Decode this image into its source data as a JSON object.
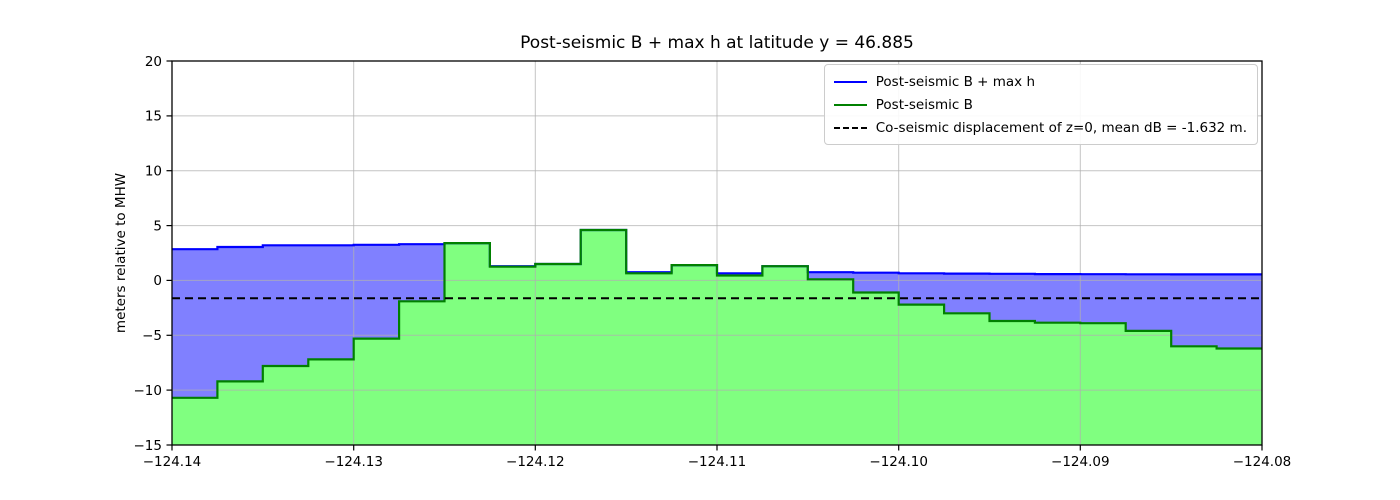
{
  "chart_data": {
    "type": "area",
    "title": "Post-seismic B + max h at latitude y = 46.885",
    "ylabel": "meters relative to MHW",
    "xlim": [
      -124.14,
      -124.08
    ],
    "ylim": [
      -15,
      20
    ],
    "grid": true,
    "legend_position": "upper right",
    "x_ticks": [
      {
        "v": -124.14,
        "label": "−124.14"
      },
      {
        "v": -124.13,
        "label": "−124.13"
      },
      {
        "v": -124.12,
        "label": "−124.12"
      },
      {
        "v": -124.11,
        "label": "−124.11"
      },
      {
        "v": -124.1,
        "label": "−124.10"
      },
      {
        "v": -124.09,
        "label": "−124.09"
      },
      {
        "v": -124.08,
        "label": "−124.08"
      }
    ],
    "y_ticks": [
      {
        "v": 20,
        "label": "20"
      },
      {
        "v": 15,
        "label": "15"
      },
      {
        "v": 10,
        "label": "10"
      },
      {
        "v": 5,
        "label": "5"
      },
      {
        "v": 0,
        "label": "0"
      },
      {
        "v": -5,
        "label": "−5"
      },
      {
        "v": -10,
        "label": "−10"
      },
      {
        "v": -15,
        "label": "−15"
      }
    ],
    "step_edges": [
      -124.14,
      -124.1375,
      -124.135,
      -124.1325,
      -124.13,
      -124.1275,
      -124.125,
      -124.1225,
      -124.12,
      -124.1175,
      -124.115,
      -124.1125,
      -124.11,
      -124.1075,
      -124.105,
      -124.1025,
      -124.1,
      -124.0975,
      -124.095,
      -124.0925,
      -124.09,
      -124.0875,
      -124.085,
      -124.0825,
      -124.08
    ],
    "series": [
      {
        "name": "Post-seismic B + max h",
        "line_color": "#0000ff",
        "fill_color": "#8080ff",
        "style": "solid",
        "values": [
          2.85,
          3.05,
          3.2,
          3.2,
          3.25,
          3.3,
          3.4,
          1.3,
          1.5,
          4.6,
          0.75,
          1.4,
          0.65,
          1.3,
          0.75,
          0.7,
          0.65,
          0.62,
          0.6,
          0.58,
          0.57,
          0.56,
          0.55,
          0.55
        ]
      },
      {
        "name": "Post-seismic B",
        "line_color": "#008000",
        "fill_color": "#80ff80",
        "style": "solid",
        "values": [
          -10.7,
          -9.2,
          -7.8,
          -7.2,
          -5.3,
          -1.9,
          3.4,
          1.25,
          1.5,
          4.6,
          0.65,
          1.4,
          0.45,
          1.3,
          0.1,
          -1.1,
          -2.2,
          -3.0,
          -3.7,
          -3.85,
          -3.9,
          -4.6,
          -6.0,
          -6.2
        ]
      }
    ],
    "coseismic_line": {
      "name": "Co-seismic displacement of z=0, mean dB = -1.632 m.",
      "color": "#000000",
      "style": "dashed",
      "value": -1.632
    },
    "grid_color": "#b0b0b0"
  }
}
